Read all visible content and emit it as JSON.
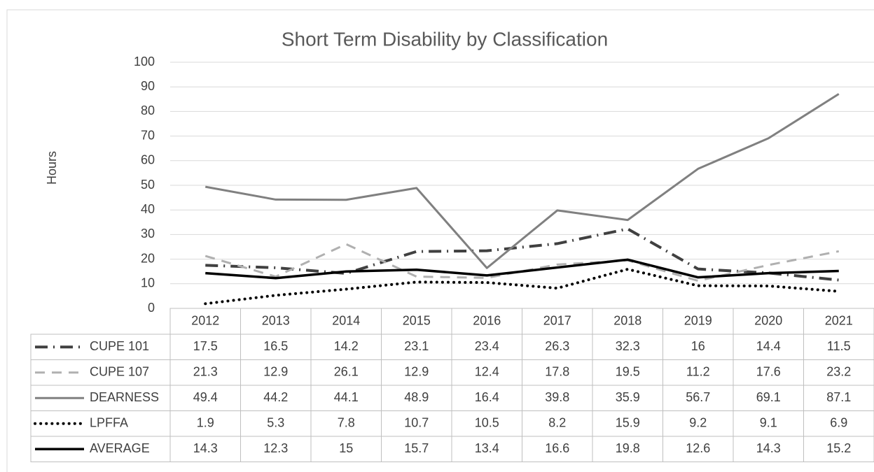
{
  "chart_data": {
    "type": "line",
    "title": "Short Term Disability by Classification",
    "y_label": "Hours",
    "categories": [
      "2012",
      "2013",
      "2014",
      "2015",
      "2016",
      "2017",
      "2018",
      "2019",
      "2020",
      "2021"
    ],
    "ylim": [
      0,
      100
    ],
    "yticks": [
      0,
      10,
      20,
      30,
      40,
      50,
      60,
      70,
      80,
      90,
      100
    ],
    "grid": true,
    "data_table": true,
    "series": [
      {
        "name": "CUPE 101",
        "color": "#404040",
        "dash": "dashdot",
        "values": [
          17.5,
          16.5,
          14.2,
          23.1,
          23.4,
          26.3,
          32.3,
          16,
          14.4,
          11.5
        ]
      },
      {
        "name": "CUPE 107",
        "color": "#b0b0b0",
        "dash": "dash",
        "values": [
          21.3,
          12.9,
          26.1,
          12.9,
          12.4,
          17.8,
          19.5,
          11.2,
          17.6,
          23.2
        ]
      },
      {
        "name": "DEARNESS",
        "color": "#808080",
        "dash": "solid",
        "values": [
          49.4,
          44.2,
          44.1,
          48.9,
          16.4,
          39.8,
          35.9,
          56.7,
          69.1,
          87.1
        ]
      },
      {
        "name": "LPFFA",
        "color": "#000000",
        "dash": "dot",
        "values": [
          1.9,
          5.3,
          7.8,
          10.7,
          10.5,
          8.2,
          15.9,
          9.2,
          9.1,
          6.9
        ]
      },
      {
        "name": "AVERAGE",
        "color": "#000000",
        "dash": "solid",
        "values": [
          14.3,
          12.3,
          15,
          15.7,
          13.4,
          16.6,
          19.8,
          12.6,
          14.3,
          15.2
        ]
      }
    ]
  }
}
